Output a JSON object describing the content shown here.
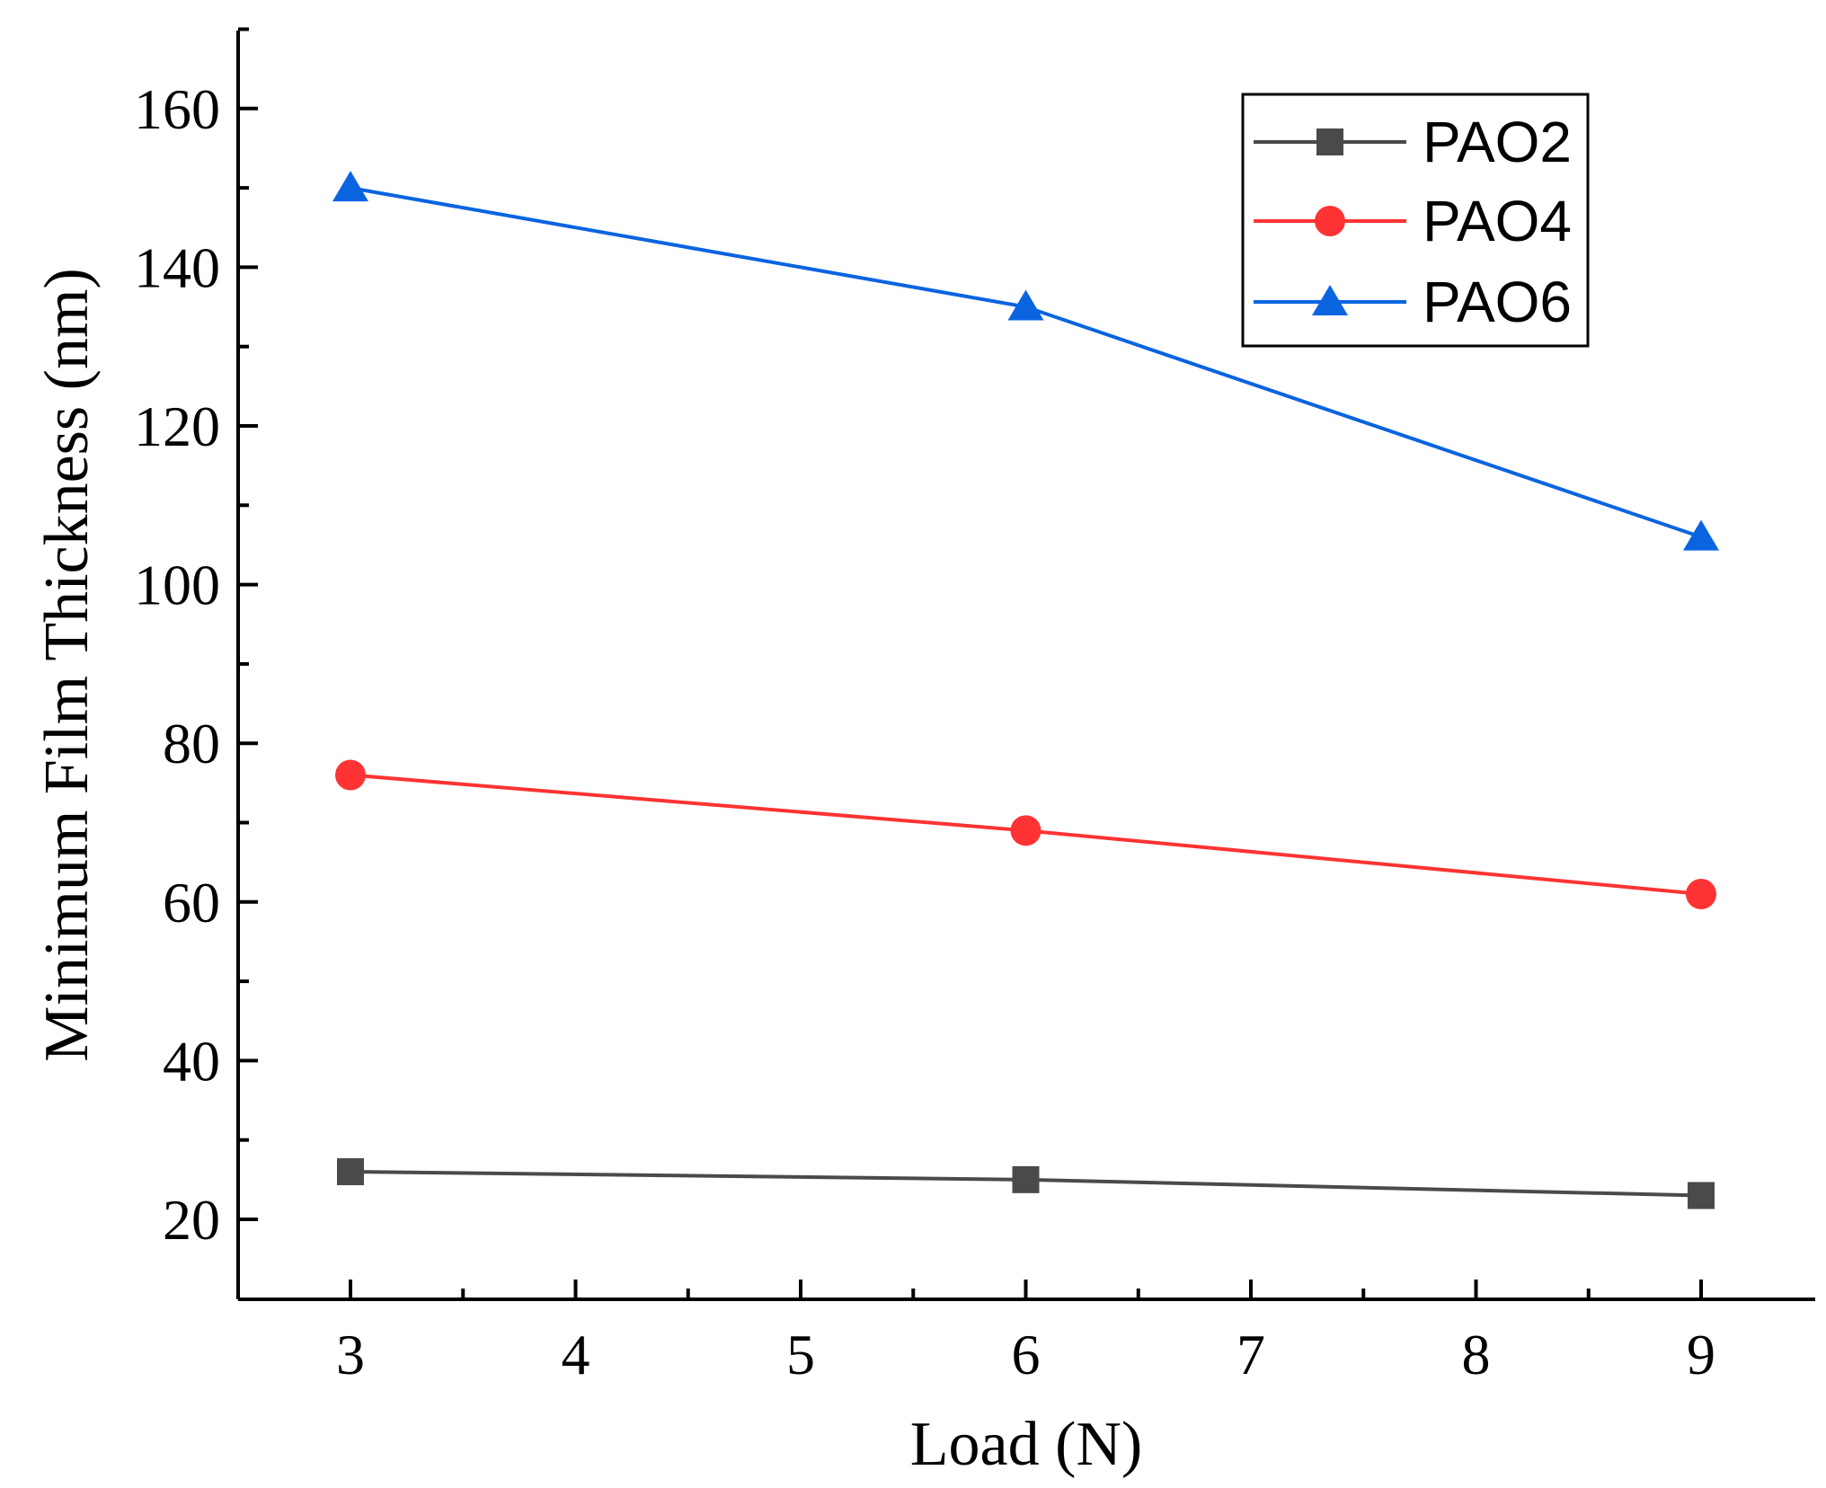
{
  "chart_data": {
    "type": "line",
    "title": "",
    "xlabel": "Load (N)",
    "ylabel": "Minimum Film Thickness (nm)",
    "x": [
      3,
      6,
      9
    ],
    "xlim": [
      2.5,
      9.5
    ],
    "ylim": [
      10,
      170
    ],
    "xticks": [
      3,
      4,
      5,
      6,
      7,
      8,
      9
    ],
    "yticks": [
      20,
      40,
      60,
      80,
      100,
      120,
      140,
      160
    ],
    "grid": false,
    "legend_position": "top-right",
    "series": [
      {
        "name": "PAO2",
        "values": [
          26,
          25,
          23
        ],
        "color": "#4a4a4a",
        "marker": "square"
      },
      {
        "name": "PAO4",
        "values": [
          76,
          69,
          61
        ],
        "color": "#ff3333",
        "marker": "circle"
      },
      {
        "name": "PAO6",
        "values": [
          150,
          135,
          106
        ],
        "color": "#0a64e0",
        "marker": "triangle"
      }
    ]
  }
}
